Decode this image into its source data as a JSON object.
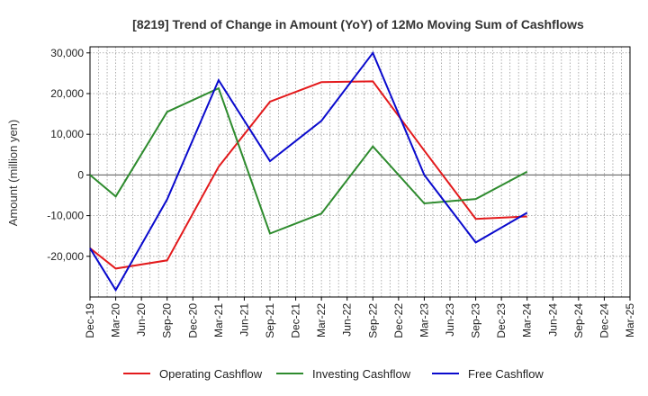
{
  "chart_data": {
    "type": "line",
    "title": "[8219]  Trend of Change in Amount (YoY) of 12Mo Moving Sum of Cashflows",
    "xlabel": "",
    "ylabel": "Amount (million yen)",
    "ylim": [
      -30000,
      31500
    ],
    "yticks": [
      30000,
      20000,
      10000,
      0,
      -10000,
      -20000
    ],
    "ytick_labels": [
      "30,000",
      "20,000",
      "10,000",
      "0",
      "-10,000",
      "-20,000"
    ],
    "categories": [
      "Dec-19",
      "Mar-20",
      "Jun-20",
      "Sep-20",
      "Dec-20",
      "Mar-21",
      "Jun-21",
      "Sep-21",
      "Dec-21",
      "Mar-22",
      "Jun-22",
      "Sep-22",
      "Dec-22",
      "Mar-23",
      "Jun-23",
      "Sep-23",
      "Dec-23",
      "Mar-24",
      "Jun-24",
      "Sep-24",
      "Dec-24",
      "Mar-25"
    ],
    "grid": true,
    "legend_position": "bottom",
    "series": [
      {
        "name": "Operating Cashflow",
        "color": "#e31a1c",
        "points": [
          {
            "x": "Dec-19",
            "y": -18000
          },
          {
            "x": "Mar-20",
            "y": -23000
          },
          {
            "x": "Sep-20",
            "y": -21000
          },
          {
            "x": "Mar-21",
            "y": 2000
          },
          {
            "x": "Sep-21",
            "y": 18000
          },
          {
            "x": "Mar-22",
            "y": 22800
          },
          {
            "x": "Sep-22",
            "y": 23000
          },
          {
            "x": "Mar-23",
            "y": 6000
          },
          {
            "x": "Sep-23",
            "y": -10800
          },
          {
            "x": "Mar-24",
            "y": -10200
          }
        ]
      },
      {
        "name": "Investing Cashflow",
        "color": "#2e8b2e",
        "points": [
          {
            "x": "Dec-19",
            "y": 0
          },
          {
            "x": "Mar-20",
            "y": -5300
          },
          {
            "x": "Sep-20",
            "y": 15500
          },
          {
            "x": "Mar-21",
            "y": 21300
          },
          {
            "x": "Sep-21",
            "y": -14400
          },
          {
            "x": "Mar-22",
            "y": -9500
          },
          {
            "x": "Sep-22",
            "y": 7000
          },
          {
            "x": "Mar-23",
            "y": -7000
          },
          {
            "x": "Sep-23",
            "y": -5900
          },
          {
            "x": "Mar-24",
            "y": 800
          }
        ]
      },
      {
        "name": "Free Cashflow",
        "color": "#0a0acd",
        "points": [
          {
            "x": "Dec-19",
            "y": -18000
          },
          {
            "x": "Mar-20",
            "y": -28300
          },
          {
            "x": "Sep-20",
            "y": -6000
          },
          {
            "x": "Mar-21",
            "y": 23300
          },
          {
            "x": "Sep-21",
            "y": 3400
          },
          {
            "x": "Mar-22",
            "y": 13300
          },
          {
            "x": "Sep-22",
            "y": 30000
          },
          {
            "x": "Mar-23",
            "y": 0
          },
          {
            "x": "Sep-23",
            "y": -16600
          },
          {
            "x": "Mar-24",
            "y": -9300
          }
        ]
      }
    ]
  }
}
